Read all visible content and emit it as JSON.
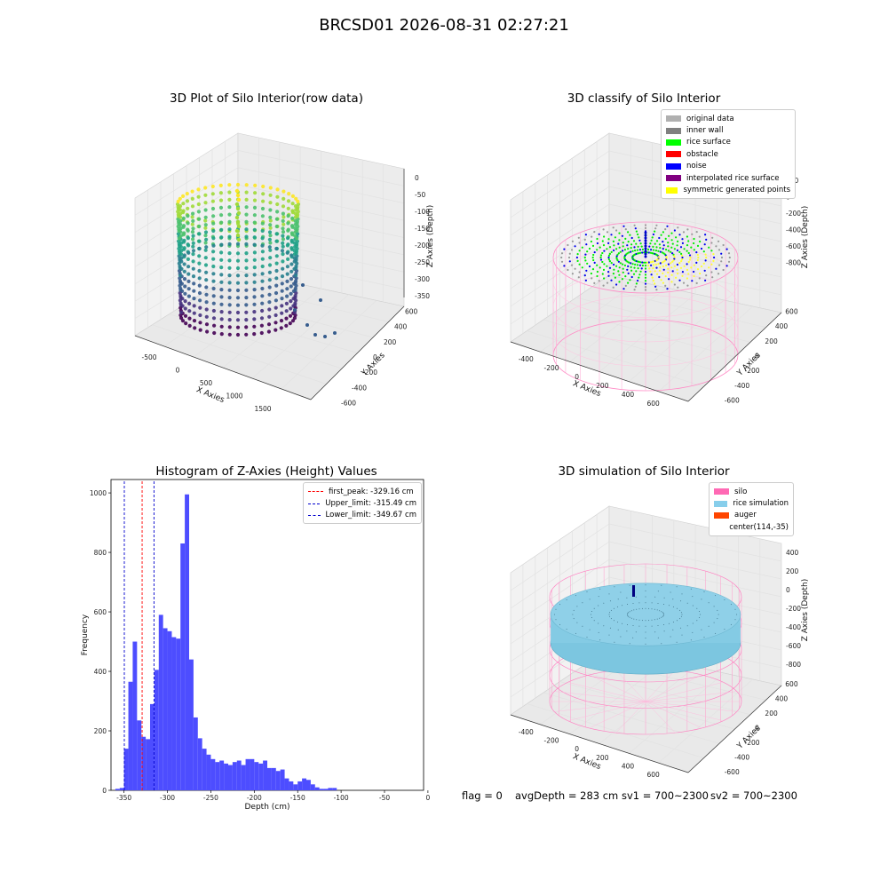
{
  "suptitle": "BRCSD01 2026-08-31 02:27:21",
  "footer": {
    "flag": "flag = 0",
    "avg_depth": "avgDepth = 283 cm",
    "sv1": "sv1 = 700~2300",
    "sv2": "sv2 = 700~2300"
  },
  "chart_data": [
    {
      "type": "scatter",
      "projection": "3d",
      "title": "3D Plot of Silo Interior(row data)",
      "xlabel": "X Axies",
      "ylabel": "Y Axies",
      "zlabel": "Z Axies (Depth)",
      "x_ticks": [
        -500,
        0,
        500,
        1000,
        1500
      ],
      "y_ticks": [
        -600,
        -400,
        -200,
        0,
        200,
        400,
        600
      ],
      "z_ticks": [
        0,
        -50,
        -100,
        -150,
        -200,
        -250,
        -300,
        -350
      ],
      "colormap": "viridis"
    },
    {
      "type": "scatter",
      "projection": "3d",
      "title": "3D classify of Silo Interior",
      "xlabel": "X Axies",
      "ylabel": "Y Axies",
      "zlabel": "Z Axies (Depth)",
      "x_ticks": [
        -400,
        -200,
        0,
        200,
        400,
        600
      ],
      "y_ticks": [
        -600,
        -400,
        -200,
        0,
        200,
        400,
        600
      ],
      "z_ticks": [
        200,
        0,
        -200,
        -400,
        -600,
        -800
      ],
      "legend_position": "top-right",
      "legend": [
        {
          "label": "original data",
          "color": "#b0b0b0"
        },
        {
          "label": "inner wall",
          "color": "#808080"
        },
        {
          "label": "rice surface",
          "color": "#00ff00"
        },
        {
          "label": "obstacle",
          "color": "#ff0000"
        },
        {
          "label": "noise",
          "color": "#0000ff"
        },
        {
          "label": "interpolated rice surface",
          "color": "#800080"
        },
        {
          "label": "symmetric generated points",
          "color": "#ffff00"
        }
      ]
    },
    {
      "type": "bar",
      "subtype": "histogram",
      "title": "Histogram of Z-Axies (Height) Values",
      "xlabel": "Depth (cm)",
      "ylabel": "Frequency",
      "xlim": [
        -365,
        -5
      ],
      "ylim": [
        0,
        1045
      ],
      "x_ticks": [
        -350,
        -300,
        -250,
        -200,
        -150,
        -100,
        -50,
        0
      ],
      "y_ticks": [
        0,
        200,
        400,
        600,
        800,
        1000
      ],
      "bar_color": "#4d4dff",
      "bin_start": -360,
      "bin_width": 5,
      "values": [
        5,
        8,
        140,
        365,
        500,
        235,
        180,
        172,
        290,
        405,
        590,
        545,
        535,
        515,
        510,
        830,
        995,
        440,
        245,
        175,
        140,
        120,
        105,
        95,
        100,
        90,
        85,
        95,
        100,
        85,
        105,
        105,
        95,
        90,
        100,
        75,
        75,
        65,
        70,
        40,
        30,
        20,
        30,
        40,
        35,
        20,
        10,
        5,
        5,
        8,
        8
      ],
      "lines": [
        {
          "label": "first_peak: -329.16 cm",
          "x": -329.16,
          "color": "#ff0000"
        },
        {
          "label": "Upper_limit: -315.49 cm",
          "x": -315.49,
          "color": "#0000cd"
        },
        {
          "label": "Lower_limit: -349.67 cm",
          "x": -349.67,
          "color": "#0000cd"
        }
      ],
      "legend_position": "top-right"
    },
    {
      "type": "scatter",
      "projection": "3d",
      "title": "3D simulation of Silo Interior",
      "xlabel": "X Axies",
      "ylabel": "Y Axies",
      "zlabel": "Z Axies (Depth)",
      "x_ticks": [
        -400,
        -200,
        0,
        200,
        400,
        600
      ],
      "y_ticks": [
        -600,
        -400,
        -200,
        0,
        200,
        400,
        600
      ],
      "z_ticks": [
        400,
        200,
        0,
        -200,
        -400,
        -600,
        -800
      ],
      "legend_position": "top-right",
      "legend": [
        {
          "label": "silo",
          "color": "#ff69b4",
          "marker": "patch"
        },
        {
          "label": "rice simulation",
          "color": "#87ceeb",
          "marker": "patch"
        },
        {
          "label": "auger",
          "color": "#ff4500",
          "marker": "patch"
        },
        {
          "label": "center(114,-35)",
          "color": "#000080",
          "marker": "none"
        }
      ]
    }
  ]
}
